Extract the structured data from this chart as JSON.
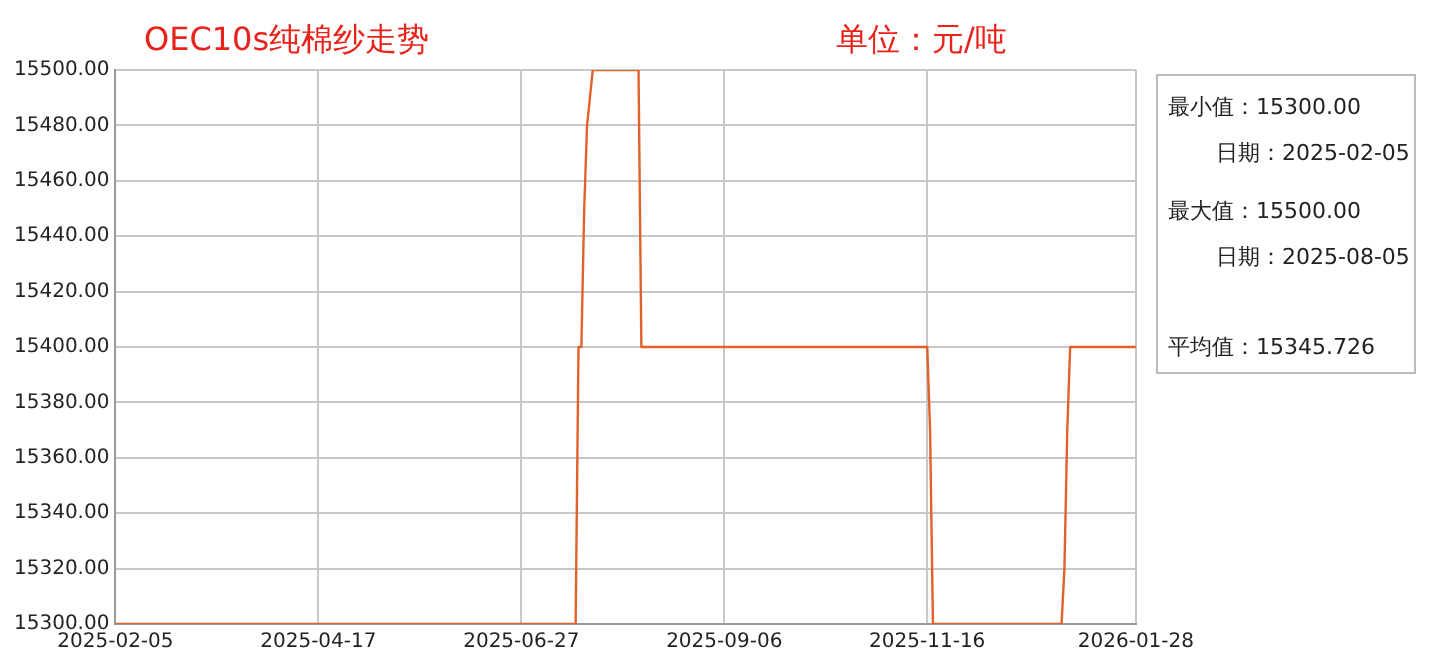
{
  "chart_data": {
    "type": "line",
    "title": "OEC10s纯棉纱走势",
    "subtitle": "单位：元/吨",
    "x": [
      "2025-02-05",
      "2025-07-16",
      "2025-07-17",
      "2025-07-18",
      "2025-07-19",
      "2025-07-20",
      "2025-07-22",
      "2025-08-07",
      "2025-08-08",
      "2025-11-16",
      "2025-11-17",
      "2025-11-18",
      "2026-01-02",
      "2026-01-03",
      "2026-01-04",
      "2026-01-05",
      "2026-01-28"
    ],
    "values": [
      15300,
      15300,
      15400,
      15400,
      15450,
      15480,
      15500,
      15500,
      15400,
      15400,
      15370,
      15300,
      15300,
      15320,
      15370,
      15400,
      15400
    ],
    "color": "#e0622a",
    "xlim": [
      "2025-02-05",
      "2026-01-28"
    ],
    "xticks": [
      "2025-02-05",
      "2025-04-17",
      "2025-06-27",
      "2025-09-06",
      "2025-11-16",
      "2026-01-28"
    ],
    "ylim": [
      15300,
      15500
    ],
    "yticks": [
      {
        "value": 15300,
        "label": "15300.00"
      },
      {
        "value": 15320,
        "label": "15320.00"
      },
      {
        "value": 15340,
        "label": "15340.00"
      },
      {
        "value": 15360,
        "label": "15360.00"
      },
      {
        "value": 15380,
        "label": "15380.00"
      },
      {
        "value": 15400,
        "label": "15400.00"
      },
      {
        "value": 15420,
        "label": "15420.00"
      },
      {
        "value": 15440,
        "label": "15440.00"
      },
      {
        "value": 15460,
        "label": "15460.00"
      },
      {
        "value": 15480,
        "label": "15480.00"
      },
      {
        "value": 15500,
        "label": "15500.00"
      }
    ],
    "grid": true,
    "annotations": [
      "最小值：15300.00",
      "日期：2025-02-05",
      "最大值：15500.00",
      "日期：2025-08-05",
      "平均值：15345.726"
    ]
  }
}
